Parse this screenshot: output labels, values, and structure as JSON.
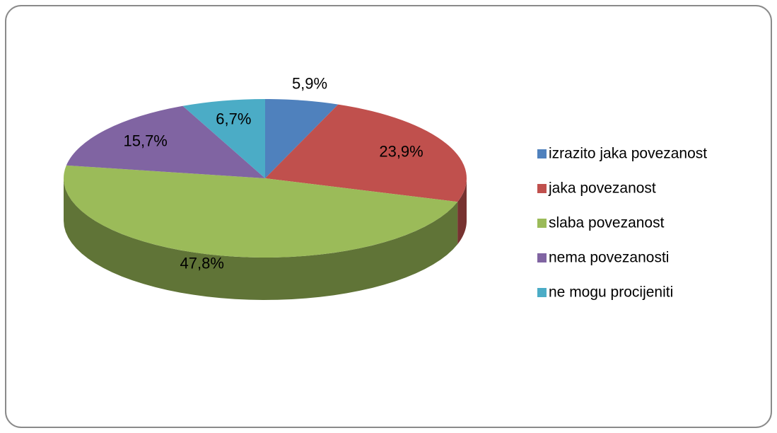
{
  "chart_data": {
    "type": "pie",
    "categories": [
      "izrazito jaka povezanost",
      "jaka povezanost",
      "slaba povezanost",
      "nema povezanosti",
      "ne mogu procijeniti"
    ],
    "values": [
      5.9,
      23.9,
      47.8,
      15.7,
      6.7
    ],
    "value_labels": [
      "5,9%",
      "23,9%",
      "47,8%",
      "15,7%",
      "6,7%"
    ],
    "colors": [
      "#4f81bd",
      "#c0504d",
      "#9bbb59",
      "#8064a2",
      "#4bacc6"
    ],
    "legend": "right"
  }
}
